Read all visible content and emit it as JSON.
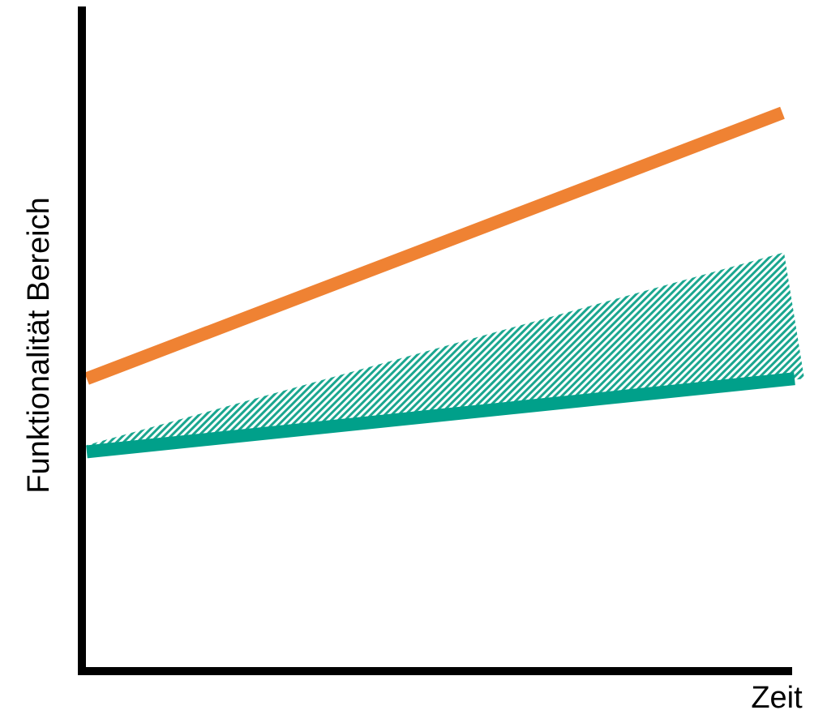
{
  "chart_data": {
    "type": "line",
    "title": "",
    "xlabel": "Zeit",
    "ylabel": "Funktionalität Bereich",
    "xlim": [
      0,
      1
    ],
    "ylim": [
      0,
      1
    ],
    "grid": false,
    "legend": "none",
    "series": [
      {
        "x": [
          0,
          1
        ],
        "values": [
          0.44,
          0.84
        ]
      },
      {
        "x": [
          0,
          1
        ],
        "values": [
          0.33,
          0.44
        ]
      }
    ],
    "band": {
      "x": [
        0,
        1
      ],
      "lower": [
        0.33,
        0.44
      ],
      "upper": [
        0.34,
        0.63
      ]
    },
    "colors": {
      "upper_line": "#ef8233",
      "lower_line": "#00a08a",
      "band_fill": "#1aa68f",
      "axis": "#000000"
    }
  }
}
